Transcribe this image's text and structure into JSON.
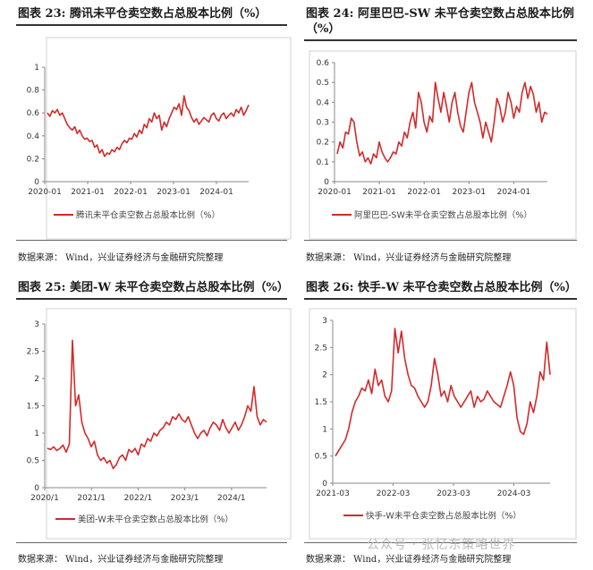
{
  "panels": [
    {
      "title": "图表 23:  腾讯未平仓卖空数占总股本比例（%）",
      "source": "数据来源：  Wind，兴业证券经济与金融研究院整理",
      "chart_data": {
        "type": "line",
        "series_name": "腾讯未平仓卖空数占总股本比例（%）",
        "color": "#d22a2a",
        "x_start": 2020.0,
        "x_end": 2024.75,
        "x_ticks": [
          [
            "2020-01",
            2020.0
          ],
          [
            "2021-01",
            2021.0
          ],
          [
            "2022-01",
            2022.0
          ],
          [
            "2023-01",
            2023.0
          ],
          [
            "2024-01",
            2024.0
          ]
        ],
        "y_ticks": [
          "0",
          "0.2",
          "0.4",
          "0.6",
          "0.8",
          "1"
        ],
        "ylim": [
          0,
          1
        ],
        "values": [
          0.6,
          0.57,
          0.62,
          0.6,
          0.63,
          0.58,
          0.6,
          0.55,
          0.5,
          0.47,
          0.45,
          0.48,
          0.42,
          0.45,
          0.4,
          0.37,
          0.38,
          0.35,
          0.36,
          0.3,
          0.32,
          0.25,
          0.28,
          0.22,
          0.25,
          0.24,
          0.28,
          0.26,
          0.3,
          0.28,
          0.33,
          0.36,
          0.34,
          0.38,
          0.37,
          0.42,
          0.39,
          0.45,
          0.42,
          0.5,
          0.47,
          0.55,
          0.52,
          0.6,
          0.55,
          0.58,
          0.45,
          0.52,
          0.48,
          0.55,
          0.6,
          0.65,
          0.63,
          0.68,
          0.58,
          0.75,
          0.65,
          0.62,
          0.56,
          0.52,
          0.55,
          0.5,
          0.53,
          0.56,
          0.54,
          0.52,
          0.58,
          0.6,
          0.55,
          0.53,
          0.58,
          0.6,
          0.55,
          0.58,
          0.6,
          0.57,
          0.63,
          0.6,
          0.65,
          0.58,
          0.62,
          0.67
        ]
      }
    },
    {
      "title": "图表 24:  阿里巴巴-SW 未平仓卖空数占总股本比例（%）",
      "source": "数据来源：  Wind，兴业证券经济与金融研究院整理",
      "chart_data": {
        "type": "line",
        "series_name": "阿里巴巴-SW未平仓卖空数占总股本比例（%）",
        "color": "#d22a2a",
        "x_start": 2020.0,
        "x_end": 2024.75,
        "x_ticks": [
          [
            "2020-01",
            2020.0
          ],
          [
            "2021-01",
            2021.0
          ],
          [
            "2022-01",
            2022.0
          ],
          [
            "2023-01",
            2023.0
          ],
          [
            "2024-01",
            2024.0
          ]
        ],
        "y_ticks": [
          "0",
          "0.1",
          "0.2",
          "0.3",
          "0.4",
          "0.5",
          "0.6"
        ],
        "ylim": [
          0,
          0.6
        ],
        "values": [
          0.14,
          0.2,
          0.17,
          0.25,
          0.24,
          0.32,
          0.3,
          0.2,
          0.13,
          0.15,
          0.1,
          0.12,
          0.09,
          0.14,
          0.12,
          0.2,
          0.15,
          0.12,
          0.1,
          0.12,
          0.15,
          0.14,
          0.2,
          0.18,
          0.25,
          0.22,
          0.3,
          0.35,
          0.27,
          0.45,
          0.4,
          0.3,
          0.25,
          0.33,
          0.3,
          0.5,
          0.42,
          0.35,
          0.45,
          0.38,
          0.3,
          0.4,
          0.45,
          0.35,
          0.28,
          0.25,
          0.35,
          0.45,
          0.5,
          0.4,
          0.35,
          0.3,
          0.22,
          0.3,
          0.25,
          0.2,
          0.3,
          0.42,
          0.38,
          0.3,
          0.35,
          0.45,
          0.4,
          0.32,
          0.38,
          0.35,
          0.45,
          0.5,
          0.42,
          0.48,
          0.44,
          0.35,
          0.4,
          0.3,
          0.35,
          0.34
        ]
      }
    },
    {
      "title": "图表 25:  美团-W 未平仓卖空数占总股本比例（%）",
      "source": "数据来源：  Wind，兴业证券经济与金融研究院整理",
      "chart_data": {
        "type": "line",
        "series_name": "美团-W未平仓卖空数占总股本比例（%）",
        "color": "#d22a2a",
        "x_start": 2020.0,
        "x_end": 2024.75,
        "x_ticks": [
          [
            "2020/1",
            2020.0
          ],
          [
            "2021/1",
            2021.0
          ],
          [
            "2022/1",
            2022.0
          ],
          [
            "2023/1",
            2023.0
          ],
          [
            "2024/1",
            2024.0
          ]
        ],
        "y_ticks": [
          "0",
          "0.5",
          "1",
          "1.5",
          "2",
          "2.5",
          "3"
        ],
        "ylim": [
          0,
          3
        ],
        "values": [
          0.72,
          0.7,
          0.75,
          0.68,
          0.72,
          0.78,
          0.65,
          0.8,
          2.7,
          1.5,
          1.7,
          1.2,
          1.0,
          0.9,
          0.75,
          0.85,
          0.6,
          0.5,
          0.55,
          0.45,
          0.5,
          0.35,
          0.42,
          0.55,
          0.6,
          0.5,
          0.7,
          0.65,
          0.72,
          0.6,
          0.8,
          0.75,
          0.9,
          0.85,
          1.0,
          0.95,
          1.05,
          1.1,
          1.2,
          1.15,
          1.3,
          1.25,
          1.35,
          1.25,
          1.2,
          1.3,
          1.15,
          1.0,
          0.9,
          1.0,
          1.05,
          0.95,
          1.1,
          1.2,
          1.15,
          1.05,
          1.25,
          1.1,
          1.0,
          1.1,
          1.2,
          1.05,
          1.15,
          1.3,
          1.5,
          1.4,
          1.85,
          1.3,
          1.15,
          1.25,
          1.2
        ]
      }
    },
    {
      "title": "图表 26:  快手-W 未平仓卖空数占总股本比例（%）",
      "source": "数据来源：  Wind，兴业证券经济与金融研究院整理",
      "chart_data": {
        "type": "line",
        "series_name": "快手-W未平仓卖空数占总股本比例（%）",
        "color": "#d22a2a",
        "x_start": 2021.0,
        "x_end": 2024.6,
        "x_ticks": [
          [
            "2021-03",
            2021.0
          ],
          [
            "2022-03",
            2022.0
          ],
          [
            "2023-03",
            2023.0
          ],
          [
            "2024-03",
            2024.0
          ]
        ],
        "y_ticks": [
          "0",
          "0.5",
          "1",
          "1.5",
          "2",
          "2.5",
          "3"
        ],
        "ylim": [
          0,
          3
        ],
        "values": [
          0.5,
          0.6,
          0.7,
          0.8,
          1.0,
          1.3,
          1.5,
          1.6,
          1.75,
          1.7,
          1.9,
          1.65,
          2.1,
          1.8,
          1.9,
          1.6,
          1.5,
          1.7,
          2.85,
          2.4,
          2.8,
          2.3,
          2.0,
          1.8,
          1.75,
          1.6,
          1.5,
          1.4,
          1.5,
          1.8,
          2.3,
          2.0,
          1.6,
          1.7,
          1.5,
          1.8,
          1.6,
          1.5,
          1.4,
          1.5,
          1.6,
          1.7,
          1.4,
          1.6,
          1.5,
          1.55,
          1.7,
          1.6,
          1.5,
          1.45,
          1.4,
          1.6,
          1.8,
          2.05,
          1.8,
          1.2,
          0.95,
          0.9,
          1.1,
          1.5,
          1.3,
          1.6,
          2.05,
          1.9,
          2.6,
          2.0
        ]
      }
    }
  ],
  "watermark": "公众号 · 张忆东策略世界"
}
